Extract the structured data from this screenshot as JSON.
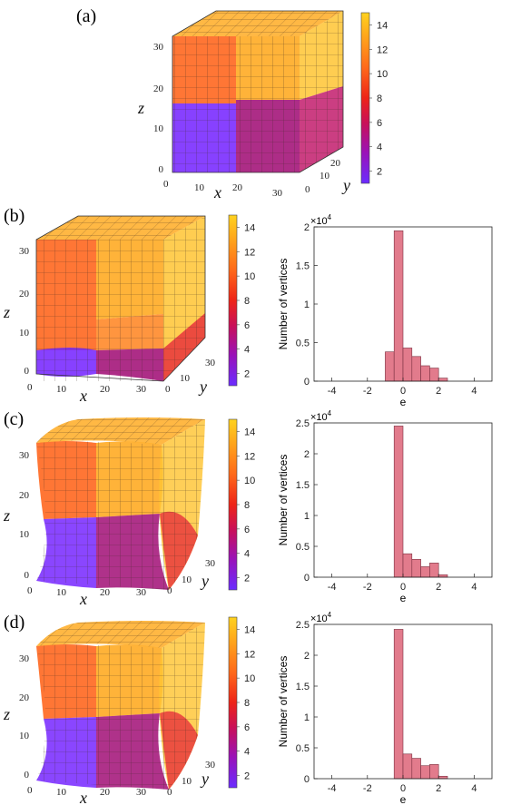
{
  "panels": [
    {
      "id": "a",
      "label": "(a)"
    },
    {
      "id": "b",
      "label": "(b)"
    },
    {
      "id": "c",
      "label": "(c)"
    },
    {
      "id": "d",
      "label": "(d)"
    }
  ],
  "axes_3d": {
    "x_label": "x",
    "y_label": "y",
    "z_label": "z",
    "x_ticks": [
      "0",
      "10",
      "20",
      "30"
    ],
    "y_ticks": [
      "0",
      "10",
      "30"
    ],
    "y_ticks_a": [
      "0",
      "10",
      "20",
      "30"
    ],
    "z_ticks": [
      "0",
      "10",
      "20",
      "30"
    ]
  },
  "colorbar": {
    "ticks": [
      "2",
      "4",
      "6",
      "8",
      "10",
      "12",
      "14"
    ],
    "min": 1,
    "max": 15,
    "colors": [
      "#6b2cff",
      "#8a1ce0",
      "#b0107a",
      "#e01a1a",
      "#ff5a1a",
      "#ff9a1a",
      "#ffd21e"
    ]
  },
  "colors": {
    "bar": "#e27b8c",
    "bar_edge": "#7a3040",
    "cube_orange": "#ff8a2a",
    "cube_yellow": "#ffc233",
    "cube_purple": "#7a2cff",
    "cube_magenta": "#a0166e"
  },
  "chart_data": [
    {
      "type": "bar",
      "panel": "b",
      "xlabel": "e",
      "ylabel": "Number of vertices",
      "exponent": "×10",
      "exponent_power": "4",
      "xlim": [
        -5,
        5
      ],
      "ylim": [
        0,
        2
      ],
      "xticks": [
        "-4",
        "-2",
        "0",
        "2",
        "4"
      ],
      "yticks": [
        "0",
        "0.5",
        "1",
        "1.5",
        "2"
      ],
      "bins": [
        -0.75,
        -0.25,
        0.25,
        0.75,
        1.25,
        1.75,
        2.25
      ],
      "values": [
        0.38,
        1.95,
        0.43,
        0.32,
        0.2,
        0.17,
        0.04
      ]
    },
    {
      "type": "bar",
      "panel": "c",
      "xlabel": "e",
      "ylabel": "Number of vertices",
      "exponent": "×10",
      "exponent_power": "4",
      "xlim": [
        -5,
        5
      ],
      "ylim": [
        0,
        2.5
      ],
      "xticks": [
        "-4",
        "-2",
        "0",
        "2",
        "4"
      ],
      "yticks": [
        "0",
        "0.5",
        "1",
        "1.5",
        "2",
        "2.5"
      ],
      "bins": [
        -0.25,
        0.25,
        0.75,
        1.25,
        1.75,
        2.25
      ],
      "values": [
        2.45,
        0.38,
        0.29,
        0.17,
        0.23,
        0.04
      ]
    },
    {
      "type": "bar",
      "panel": "d",
      "xlabel": "e",
      "ylabel": "Number of vertices",
      "exponent": "×10",
      "exponent_power": "4",
      "xlim": [
        -5,
        5
      ],
      "ylim": [
        0,
        2.5
      ],
      "xticks": [
        "-4",
        "-2",
        "0",
        "2",
        "4"
      ],
      "yticks": [
        "0",
        "0.5",
        "1",
        "1.5",
        "2",
        "2.5"
      ],
      "bins": [
        -0.25,
        0.25,
        0.75,
        1.25,
        1.75,
        2.25
      ],
      "values": [
        2.42,
        0.4,
        0.33,
        0.21,
        0.23,
        0.04
      ]
    }
  ]
}
